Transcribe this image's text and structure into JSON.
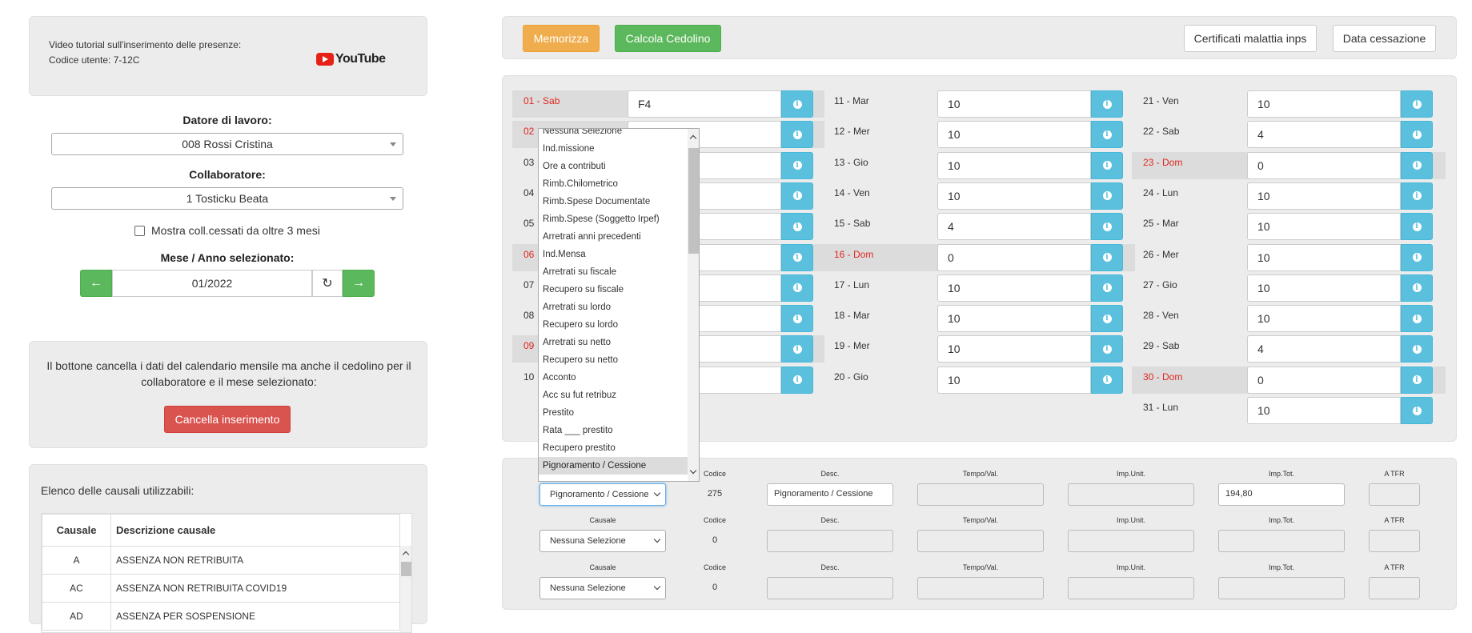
{
  "tutorial": {
    "text": "Video tutorial sull'inserimento delle presenze:",
    "user_code": "Codice utente: 7-12C",
    "youtube": "YouTube"
  },
  "employer": {
    "label": "Datore di lavoro:",
    "value": "008 Rossi Cristina"
  },
  "collaborator": {
    "label": "Collaboratore:",
    "value": "1 Tosticku Beata"
  },
  "show_ceased": {
    "label": "Mostra coll.cessati da oltre 3 mesi",
    "checked": false
  },
  "month": {
    "label": "Mese / Anno selezionato:",
    "value": "01/2022"
  },
  "cancel_panel": {
    "text": "Il bottone cancella i dati del calendario mensile ma anche il cedolino per il collaboratore e il mese selezionato:",
    "button": "Cancella inserimento"
  },
  "causali_panel": {
    "title": "Elenco delle causali utilizzabili:",
    "col_code": "Causale",
    "col_desc": "Descrizione causale",
    "rows": [
      {
        "code": "A",
        "desc": "ASSENZA NON RETRIBUITA"
      },
      {
        "code": "AC",
        "desc": "ASSENZA NON RETRIBUITA COVID19"
      },
      {
        "code": "AD",
        "desc": "ASSENZA PER SOSPENSIONE"
      }
    ]
  },
  "toolbar": {
    "memorizza": "Memorizza",
    "calcola": "Calcola Cedolino",
    "certificati": "Certificati malattia inps",
    "cessazione": "Data cessazione"
  },
  "calendar": {
    "col1": [
      {
        "label": "01 - Sab",
        "value": "F4",
        "holiday": true
      },
      {
        "label": "02",
        "value": "",
        "holiday": true
      },
      {
        "label": "03",
        "value": "",
        "holiday": false
      },
      {
        "label": "04",
        "value": "",
        "holiday": false
      },
      {
        "label": "05",
        "value": "",
        "holiday": false
      },
      {
        "label": "06",
        "value": "",
        "holiday": true
      },
      {
        "label": "07",
        "value": "",
        "holiday": false
      },
      {
        "label": "08",
        "value": "",
        "holiday": false
      },
      {
        "label": "09",
        "value": "",
        "holiday": true
      },
      {
        "label": "10",
        "value": "",
        "holiday": false
      }
    ],
    "col2": [
      {
        "label": "11 - Mar",
        "value": "10",
        "holiday": false
      },
      {
        "label": "12 - Mer",
        "value": "10",
        "holiday": false
      },
      {
        "label": "13 - Gio",
        "value": "10",
        "holiday": false
      },
      {
        "label": "14 - Ven",
        "value": "10",
        "holiday": false
      },
      {
        "label": "15 - Sab",
        "value": "4",
        "holiday": false
      },
      {
        "label": "16 - Dom",
        "value": "0",
        "holiday": true
      },
      {
        "label": "17 - Lun",
        "value": "10",
        "holiday": false
      },
      {
        "label": "18 - Mar",
        "value": "10",
        "holiday": false
      },
      {
        "label": "19 - Mer",
        "value": "10",
        "holiday": false
      },
      {
        "label": "20 - Gio",
        "value": "10",
        "holiday": false
      }
    ],
    "col3": [
      {
        "label": "21 - Ven",
        "value": "10",
        "holiday": false
      },
      {
        "label": "22 - Sab",
        "value": "4",
        "holiday": false
      },
      {
        "label": "23 - Dom",
        "value": "0",
        "holiday": true
      },
      {
        "label": "24 - Lun",
        "value": "10",
        "holiday": false
      },
      {
        "label": "25 - Mar",
        "value": "10",
        "holiday": false
      },
      {
        "label": "26 - Mer",
        "value": "10",
        "holiday": false
      },
      {
        "label": "27 - Gio",
        "value": "10",
        "holiday": false
      },
      {
        "label": "28 - Ven",
        "value": "10",
        "holiday": false
      },
      {
        "label": "29 - Sab",
        "value": "4",
        "holiday": false
      },
      {
        "label": "30 - Dom",
        "value": "0",
        "holiday": true
      },
      {
        "label": "31 - Lun",
        "value": "10",
        "holiday": false
      }
    ]
  },
  "dropdown": {
    "items": [
      "Nessuna Selezione",
      "Ind.missione",
      "Ore a contributi",
      "Rimb.Chilometrico",
      "Rimb.Spese Documentate",
      "Rimb.Spese (Soggetto Irpef)",
      "Arretrati anni precedenti",
      "Ind.Mensa",
      "Arretrati su fiscale",
      "Recupero su fiscale",
      "Arretrati su lordo",
      "Recupero su lordo",
      "Arretrati su netto",
      "Recupero su netto",
      "Acconto",
      "Acc su fut retribuz",
      "Prestito",
      "Rata ___ prestito",
      "Recupero prestito",
      "Pignoramento / Cessione"
    ],
    "selected": "Pignoramento / Cessione"
  },
  "causali_rows": {
    "headers": {
      "causale": "Causale",
      "codice": "Codice",
      "desc": "Desc.",
      "tempo": "Tempo/Val.",
      "imp_unit": "Imp.Unit.",
      "imp_tot": "Imp.Tot.",
      "tfr": "A TFR"
    },
    "rows": [
      {
        "causale": "Pignoramento / Cessione",
        "codice": "275",
        "desc": "Pignoramento / Cessione",
        "tempo": "",
        "imp_unit": "",
        "imp_tot": "194,80",
        "tfr": ""
      },
      {
        "causale": "Nessuna Selezione",
        "codice": "0",
        "desc": "",
        "tempo": "",
        "imp_unit": "",
        "imp_tot": "",
        "tfr": ""
      },
      {
        "causale": "Nessuna Selezione",
        "codice": "0",
        "desc": "",
        "tempo": "",
        "imp_unit": "",
        "imp_tot": "",
        "tfr": ""
      }
    ]
  }
}
